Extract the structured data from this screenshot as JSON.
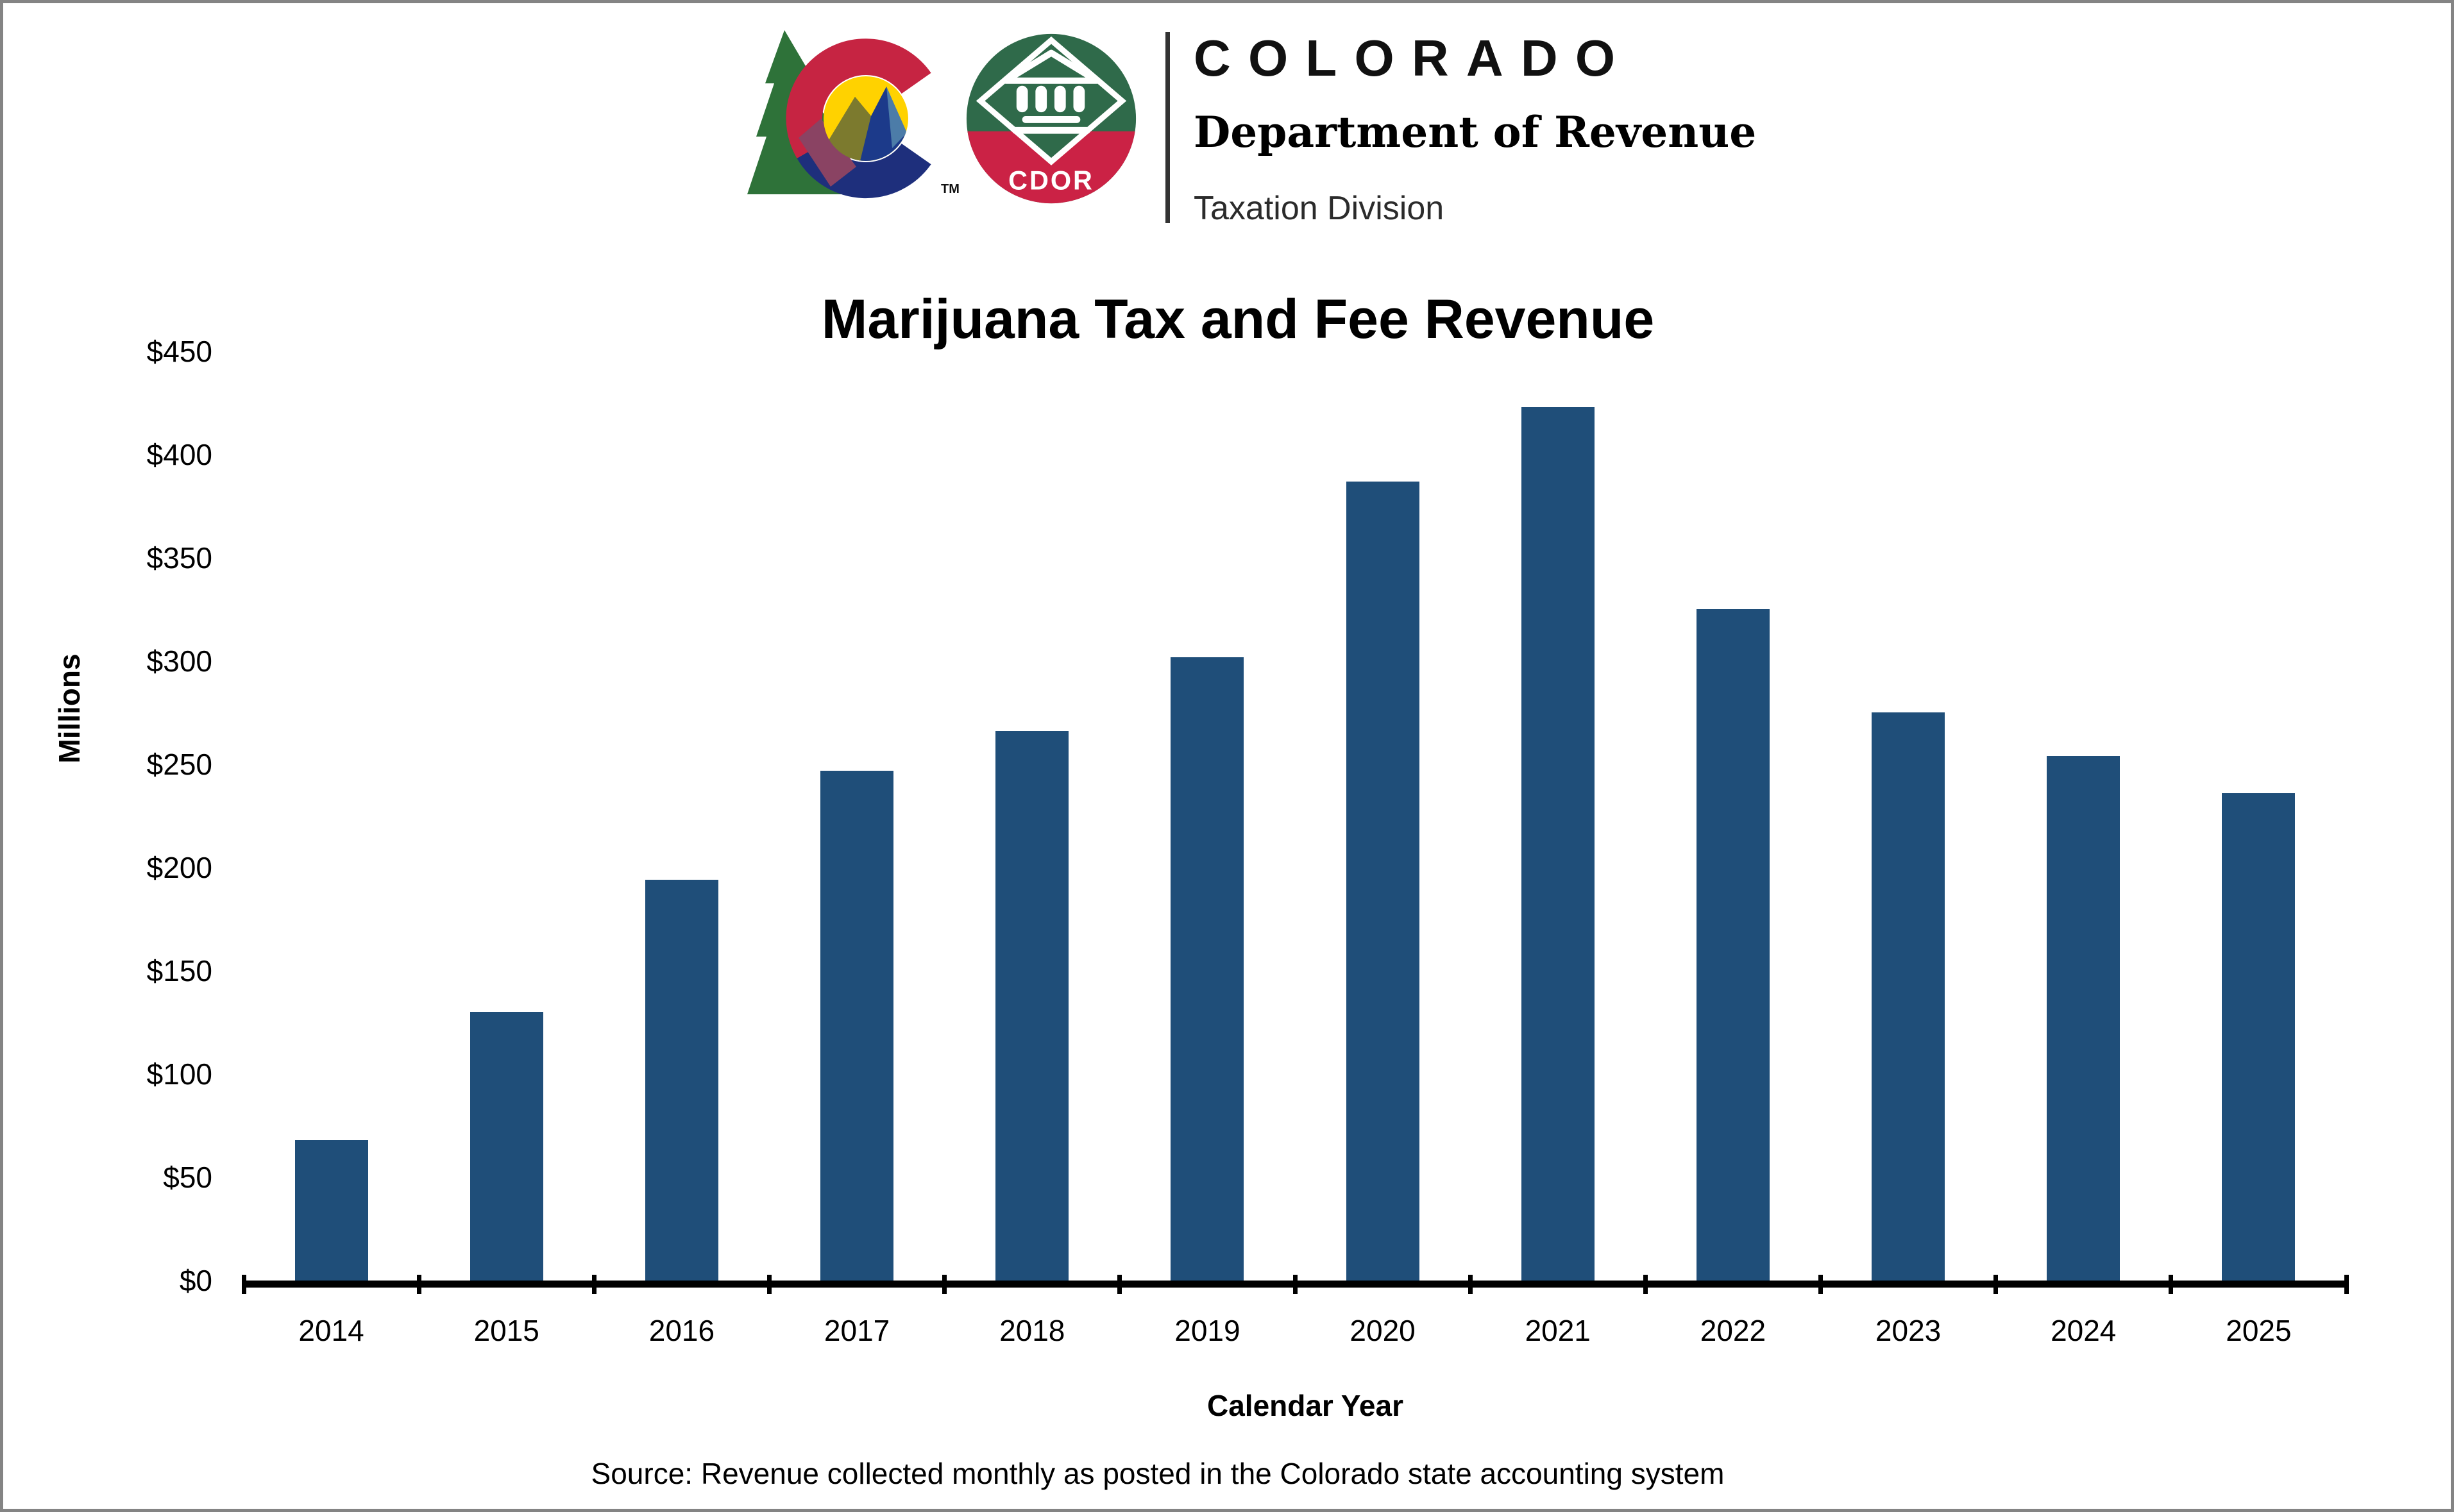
{
  "brand": {
    "state_name": "COLORADO",
    "department": "Department of Revenue",
    "division": "Taxation Division",
    "roundel_text": "CDOR",
    "trademark": "TM"
  },
  "chart": {
    "title": "Marijuana Tax and Fee Revenue",
    "y_axis_title": "Millions",
    "x_axis_title": "Calendar Year",
    "source_note": "Source: Revenue collected monthly as posted in the Colorado state accounting system",
    "y_tick_labels": [
      "$450",
      "$400",
      "$350",
      "$300",
      "$250",
      "$200",
      "$150",
      "$100",
      "$50",
      "$0"
    ]
  },
  "chart_data": {
    "type": "bar",
    "title": "Marijuana Tax and Fee Revenue",
    "xlabel": "Calendar Year",
    "ylabel": "Millions",
    "unit": "USD millions",
    "categories": [
      "2014",
      "2015",
      "2016",
      "2017",
      "2018",
      "2019",
      "2020",
      "2021",
      "2022",
      "2023",
      "2024",
      "2025"
    ],
    "values": [
      68,
      130,
      194,
      247,
      266,
      302,
      387,
      423,
      325,
      275,
      254,
      236
    ],
    "ylim": [
      0,
      450
    ],
    "ytick_interval": 50,
    "grid": false,
    "legend_position": "none",
    "bar_color": "#1F4E79",
    "source": "Source: Revenue collected monthly as posted in the Colorado state accounting system"
  },
  "colors": {
    "bar": "#1F4E79",
    "axis": "#000000",
    "page_border": "#848484",
    "logo_tree_green": "#2E7239",
    "logo_c_red": "#C62442",
    "logo_c_navy": "#1E2F7C",
    "logo_yellow": "#FFD200",
    "logo_mountain_navy": "#1C3A8A",
    "logo_olive": "#7C7A2E",
    "logo_steel_blue": "#4C7CA8",
    "logo_maroon_blend": "#8A4363",
    "roundel_green": "#2F6A4A",
    "roundel_red": "#CB2245"
  }
}
